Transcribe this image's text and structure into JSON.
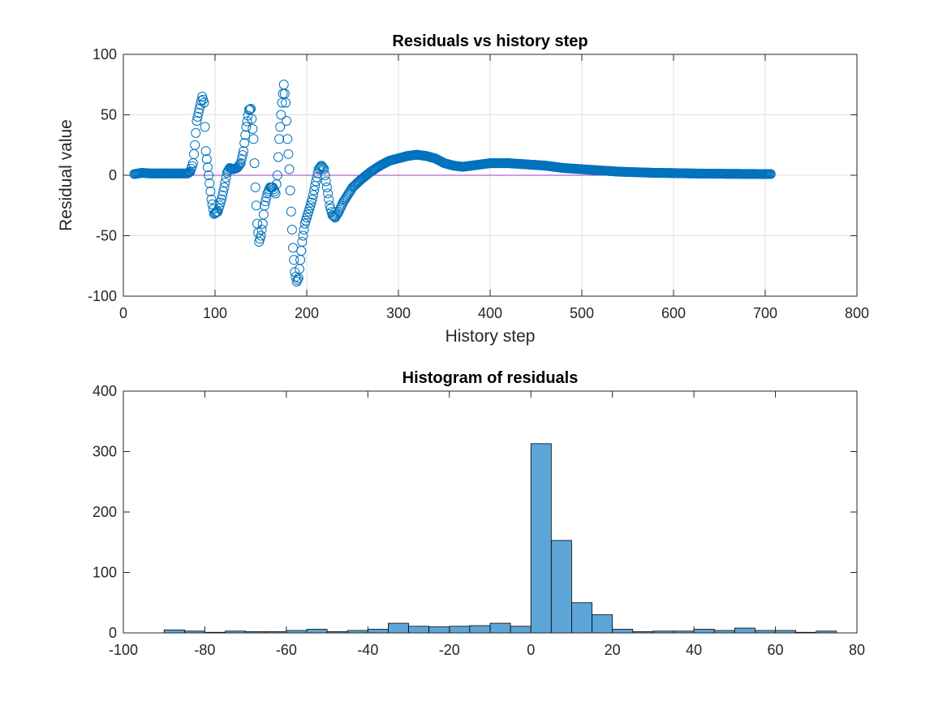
{
  "chart_data": [
    {
      "type": "scatter",
      "title": "Residuals vs history step",
      "xlabel": "History step",
      "ylabel": "Residual value",
      "xlim": [
        0,
        800
      ],
      "ylim": [
        -100,
        100
      ],
      "xticks": [
        "0",
        "100",
        "200",
        "300",
        "400",
        "500",
        "600",
        "700",
        "800"
      ],
      "yticks": [
        "-100",
        "-50",
        "0",
        "50",
        "100"
      ],
      "grid": true,
      "marker": "open-circle",
      "marker_color": "#0072BD",
      "reference_line": {
        "y": 0,
        "color": "#9B3FBF"
      },
      "keypoints": [
        [
          12,
          1
        ],
        [
          20,
          2
        ],
        [
          30,
          1.5
        ],
        [
          45,
          1.5
        ],
        [
          60,
          1.5
        ],
        [
          70,
          1.5
        ],
        [
          73,
          3
        ],
        [
          76,
          10
        ],
        [
          78,
          25
        ],
        [
          80,
          45
        ],
        [
          83,
          55
        ],
        [
          86,
          65
        ],
        [
          88,
          60
        ],
        [
          90,
          20
        ],
        [
          93,
          0
        ],
        [
          96,
          -20
        ],
        [
          99,
          -32
        ],
        [
          103,
          -30
        ],
        [
          107,
          -20
        ],
        [
          110,
          -10
        ],
        [
          113,
          2
        ],
        [
          116,
          6
        ],
        [
          120,
          5
        ],
        [
          124,
          6
        ],
        [
          128,
          10
        ],
        [
          131,
          20
        ],
        [
          134,
          40
        ],
        [
          137,
          54
        ],
        [
          139,
          55
        ],
        [
          142,
          30
        ],
        [
          144,
          -10
        ],
        [
          146,
          -40
        ],
        [
          148,
          -55
        ],
        [
          150,
          -50
        ],
        [
          152,
          -40
        ],
        [
          154,
          -25
        ],
        [
          157,
          -15
        ],
        [
          160,
          -10
        ],
        [
          163,
          -10
        ],
        [
          166,
          -15
        ],
        [
          168,
          0
        ],
        [
          170,
          30
        ],
        [
          173,
          60
        ],
        [
          175,
          75
        ],
        [
          177,
          60
        ],
        [
          179,
          30
        ],
        [
          181,
          5
        ],
        [
          183,
          -30
        ],
        [
          185,
          -60
        ],
        [
          187,
          -80
        ],
        [
          189,
          -88
        ],
        [
          191,
          -85
        ],
        [
          193,
          -70
        ],
        [
          195,
          -55
        ],
        [
          198,
          -40
        ],
        [
          202,
          -30
        ],
        [
          206,
          -20
        ],
        [
          210,
          -5
        ],
        [
          213,
          5
        ],
        [
          216,
          8
        ],
        [
          219,
          5
        ],
        [
          222,
          -10
        ],
        [
          225,
          -25
        ],
        [
          228,
          -33
        ],
        [
          231,
          -35
        ],
        [
          235,
          -30
        ],
        [
          240,
          -22
        ],
        [
          250,
          -10
        ],
        [
          260,
          -3
        ],
        [
          270,
          3
        ],
        [
          280,
          8
        ],
        [
          290,
          12
        ],
        [
          300,
          14
        ],
        [
          310,
          16
        ],
        [
          320,
          17
        ],
        [
          330,
          16
        ],
        [
          340,
          14
        ],
        [
          350,
          10
        ],
        [
          360,
          8
        ],
        [
          370,
          7
        ],
        [
          380,
          8
        ],
        [
          390,
          9
        ],
        [
          400,
          10
        ],
        [
          420,
          10
        ],
        [
          440,
          9
        ],
        [
          460,
          8
        ],
        [
          480,
          6
        ],
        [
          500,
          5
        ],
        [
          520,
          4
        ],
        [
          540,
          3
        ],
        [
          560,
          2.5
        ],
        [
          580,
          2
        ],
        [
          600,
          1.8
        ],
        [
          620,
          1.5
        ],
        [
          640,
          1.3
        ],
        [
          660,
          1.2
        ],
        [
          680,
          1.1
        ],
        [
          700,
          1
        ],
        [
          706,
          1
        ]
      ]
    },
    {
      "type": "bar",
      "title": "Histogram of residuals",
      "xlim": [
        -100,
        80
      ],
      "ylim": [
        0,
        400
      ],
      "xticks": [
        "-100",
        "-80",
        "-60",
        "-40",
        "-20",
        "0",
        "20",
        "40",
        "60",
        "80"
      ],
      "yticks": [
        "0",
        "100",
        "200",
        "300",
        "400"
      ],
      "grid": false,
      "bar_color": "#5DA5D7",
      "bin_width": 5,
      "bin_starts": [
        -90,
        -85,
        -80,
        -75,
        -70,
        -65,
        -60,
        -55,
        -50,
        -45,
        -40,
        -35,
        -30,
        -25,
        -20,
        -15,
        -10,
        -5,
        0,
        5,
        10,
        15,
        20,
        25,
        30,
        35,
        40,
        45,
        50,
        55,
        60,
        65,
        70
      ],
      "values": [
        5,
        3,
        1,
        3,
        2,
        2,
        4,
        6,
        2,
        4,
        6,
        16,
        11,
        10,
        11,
        12,
        16,
        11,
        313,
        153,
        50,
        30,
        6,
        2,
        3,
        3,
        6,
        4,
        8,
        4,
        4,
        1,
        3
      ]
    }
  ]
}
